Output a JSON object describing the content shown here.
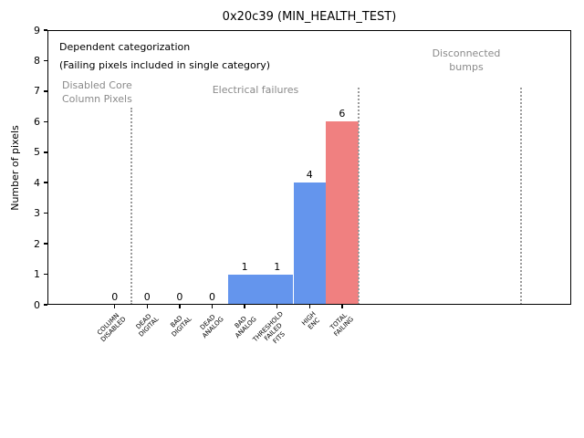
{
  "window": {
    "title": "0x20c39 (MIN_HEALTH_TEST)"
  },
  "chart_data": {
    "type": "bar",
    "title": "0x20c39 (MIN_HEALTH_TEST)",
    "xlabel": "",
    "ylabel": "Number of pixels",
    "ylim": [
      0,
      9
    ],
    "yticks": [
      0,
      1,
      2,
      3,
      4,
      5,
      6,
      7,
      8,
      9
    ],
    "grid": false,
    "legend": null,
    "categories": [
      "COLUMN\nDISABLED",
      "DEAD\nDIGITAL",
      "BAD\nDIGITAL",
      "DEAD\nANALOG",
      "BAD\nANALOG",
      "THRESHOLD\nFAILED\nFITS",
      "HIGH\nENC",
      "TOTAL\nFAILING"
    ],
    "values": [
      0,
      0,
      0,
      0,
      1,
      1,
      4,
      6
    ],
    "value_labels": [
      "0",
      "0",
      "0",
      "0",
      "1",
      "1",
      "4",
      "6"
    ],
    "bar_color_default": "#6495ed",
    "bar_color_total_failing": "#f08080",
    "separator_color": "#9a9a9a",
    "separator_positions_category_units": [
      0.5,
      7.5,
      12.5
    ],
    "annotations": [
      {
        "text": "Dependent categorization",
        "color": "#000000"
      },
      {
        "text": "(Failing pixels included in single category)",
        "color": "#000000"
      }
    ],
    "region_labels": [
      {
        "text": "Disabled Core\nColumn Pixels",
        "color": "#8a8a8a"
      },
      {
        "text": "Electrical failures",
        "color": "#8a8a8a"
      },
      {
        "text": "Disconnected\nbumps",
        "color": "#8a8a8a"
      }
    ]
  }
}
